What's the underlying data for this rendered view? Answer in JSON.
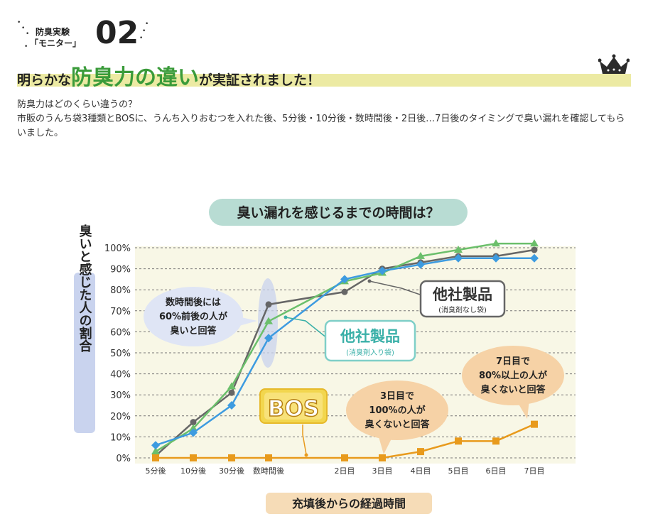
{
  "header": {
    "label_line1": "防臭実験",
    "label_line2": "「モニター」",
    "number": "02",
    "headline_pre": "明らかな",
    "headline_emph": "防臭力の違い",
    "headline_post": "が実証されました！"
  },
  "intro": {
    "line1": "防臭力はどのくらい違うの？",
    "line2": "市販のうんち袋3種類とBOSに、うんち入りおむつを入れた後、5分後・10分後・数時間後・2日後…7日後のタイミングで臭い漏れを確認してもらいました。"
  },
  "chart_data": {
    "type": "line",
    "title": "臭い漏れを感じるまでの時間は？",
    "xlabel": "充填後からの経過時間",
    "ylabel": "臭いと感じた人の割合",
    "categories": [
      "5分後",
      "10分後",
      "30分後",
      "数時間後",
      "2日目",
      "3日目",
      "4日目",
      "5日目",
      "6日目",
      "7日目"
    ],
    "yticks": [
      "0%",
      "10%",
      "20%",
      "30%",
      "40%",
      "50%",
      "60%",
      "70%",
      "80%",
      "90%",
      "100%"
    ],
    "ylim": [
      0,
      100
    ],
    "grid": true,
    "series": [
      {
        "name": "他社製品（消臭剤なし袋）",
        "color": "#666666",
        "marker": "circle",
        "values": [
          1,
          17,
          31,
          73,
          79,
          90,
          93,
          96,
          96,
          99
        ]
      },
      {
        "name": "他社製品（消臭剤入り袋）",
        "color": "#6bbf6b",
        "marker": "triangle",
        "values": [
          3,
          14,
          34,
          65,
          84,
          88,
          96,
          99,
          102,
          102
        ]
      },
      {
        "name": "他社製品（消臭剤入り袋）",
        "color": "#3d9be0",
        "marker": "diamond",
        "values": [
          6,
          12,
          25,
          57,
          85,
          89,
          92,
          95,
          95,
          95
        ]
      },
      {
        "name": "BOS",
        "color": "#e89a1c",
        "marker": "square",
        "values": [
          0,
          0,
          0,
          0,
          0,
          0,
          3,
          8,
          8,
          16
        ]
      }
    ],
    "annotations": {
      "left_bubble": [
        "数時間後には",
        "60%前後の人が",
        "臭いと回答"
      ],
      "mid_bubble": [
        "3日目で",
        "100%の人が",
        "臭くないと回答"
      ],
      "right_bubble": [
        "7日目で",
        "80%以上の人が",
        "臭くないと回答"
      ],
      "label_nobag_big": "他社製品",
      "label_nobag_small": "(消臭剤なし袋)",
      "label_withbag_big": "他社製品",
      "label_withbag_small": "(消臭剤入り袋)",
      "bos_logo": "BOS"
    }
  }
}
